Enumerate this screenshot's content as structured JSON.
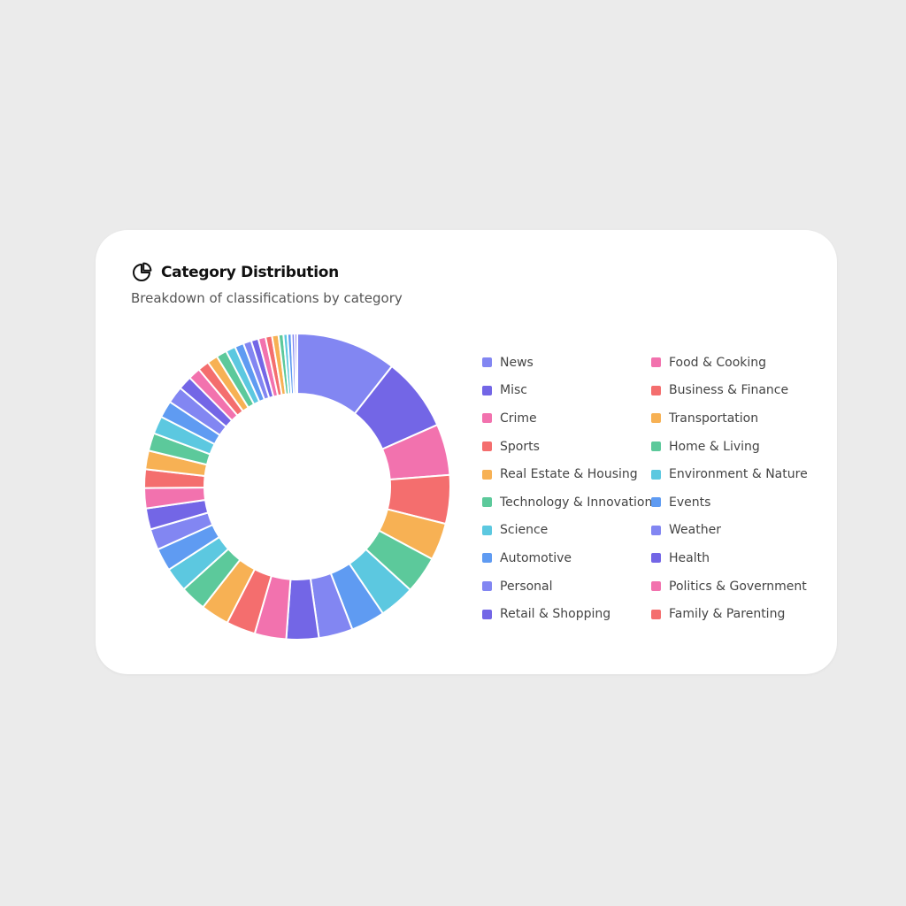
{
  "card": {
    "title": "Category Distribution",
    "subtitle": "Breakdown of classifications by category",
    "icon": "pie-chart-icon"
  },
  "palette": [
    "#8286f2",
    "#7366e6",
    "#f272ae",
    "#f46e6e",
    "#f7b154",
    "#5cc99b",
    "#5cc8e0",
    "#5f9bf2"
  ],
  "legend": [
    {
      "label": "News",
      "color": "#8286f2"
    },
    {
      "label": "Food & Cooking",
      "color": "#f272ae"
    },
    {
      "label": "Misc",
      "color": "#7366e6"
    },
    {
      "label": "Business & Finance",
      "color": "#f46e6e"
    },
    {
      "label": "Crime",
      "color": "#f272ae"
    },
    {
      "label": "Transportation",
      "color": "#f7b154"
    },
    {
      "label": "Sports",
      "color": "#f46e6e"
    },
    {
      "label": "Home & Living",
      "color": "#5cc99b"
    },
    {
      "label": "Real Estate & Housing",
      "color": "#f7b154"
    },
    {
      "label": "Environment & Nature",
      "color": "#5cc8e0"
    },
    {
      "label": "Technology & Innovation",
      "color": "#5cc99b"
    },
    {
      "label": "Events",
      "color": "#5f9bf2"
    },
    {
      "label": "Science",
      "color": "#5cc8e0"
    },
    {
      "label": "Weather",
      "color": "#8286f2"
    },
    {
      "label": "Automotive",
      "color": "#5f9bf2"
    },
    {
      "label": "Health",
      "color": "#7366e6"
    },
    {
      "label": "Personal",
      "color": "#8286f2"
    },
    {
      "label": "Politics & Government",
      "color": "#f272ae"
    },
    {
      "label": "Retail & Shopping",
      "color": "#7366e6"
    },
    {
      "label": "Family & Parenting",
      "color": "#f46e6e"
    }
  ],
  "chart_data": {
    "type": "pie",
    "donut": true,
    "values": [
      12.4,
      9.1,
      6.3,
      6.0,
      4.6,
      4.6,
      4.4,
      4.2,
      4.2,
      4.0,
      3.9,
      3.6,
      3.5,
      3.2,
      3.0,
      2.8,
      2.6,
      2.6,
      2.5,
      2.3,
      2.3,
      2.2,
      2.2,
      2.1,
      2.1,
      1.7,
      1.5,
      1.4,
      1.3,
      1.3,
      1.2,
      1.1,
      1.0,
      0.9,
      0.9,
      0.8,
      0.8,
      0.6,
      0.5,
      0.5,
      0.4,
      0.3
    ]
  }
}
